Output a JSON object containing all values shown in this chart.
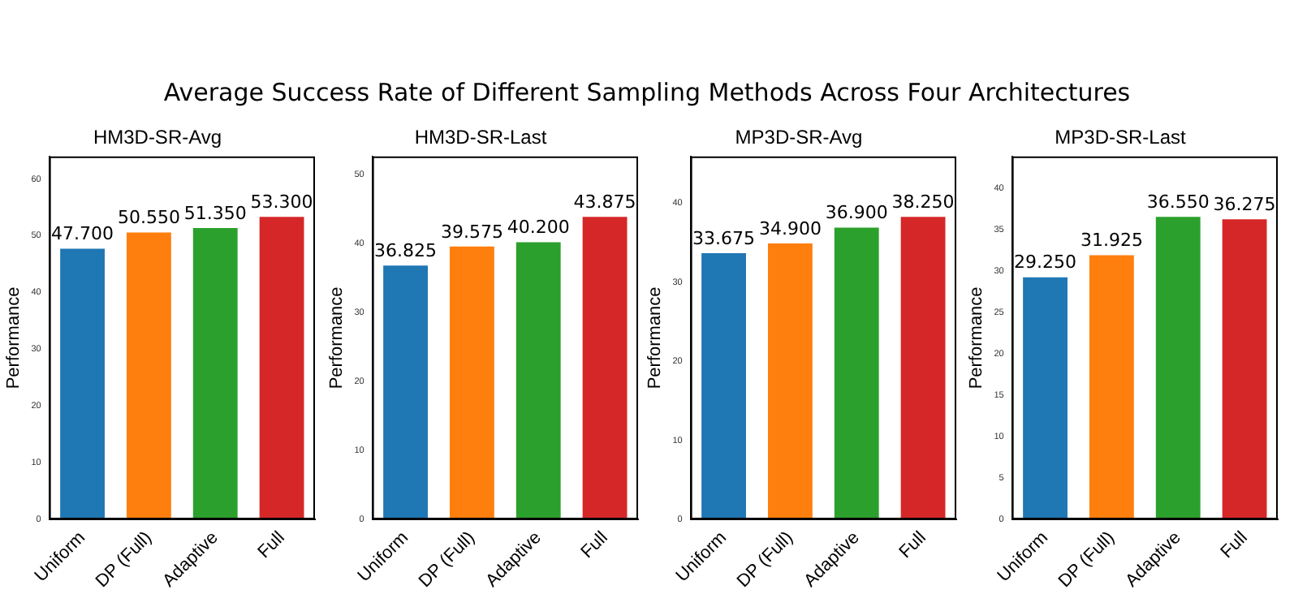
{
  "chart_data": [
    {
      "type": "other",
      "title": "Average Success Rate of Different Sampling Methods Across Four Architectures"
    },
    {
      "type": "bar",
      "title": "HM3D-SR-Avg",
      "ylabel": "Performance",
      "categories": [
        "Uniform",
        "DP (Full)",
        "Adaptive",
        "Full"
      ],
      "values": [
        47.7,
        50.55,
        51.35,
        53.3
      ],
      "colors": [
        "#1f77b4",
        "#ff7f0e",
        "#2ca02c",
        "#d62728"
      ],
      "value_labels": [
        "47.700",
        "50.550",
        "51.350",
        "53.300"
      ],
      "ylim": [
        0,
        63.96
      ],
      "yticks": [
        0,
        10,
        20,
        30,
        40,
        50,
        60
      ],
      "grid": false,
      "legend": false
    },
    {
      "type": "bar",
      "title": "HM3D-SR-Last",
      "ylabel": "Performance",
      "categories": [
        "Uniform",
        "DP (Full)",
        "Adaptive",
        "Full"
      ],
      "values": [
        36.825,
        39.575,
        40.2,
        43.875
      ],
      "colors": [
        "#1f77b4",
        "#ff7f0e",
        "#2ca02c",
        "#d62728"
      ],
      "value_labels": [
        "36.825",
        "39.575",
        "40.200",
        "43.875"
      ],
      "ylim": [
        0,
        52.65
      ],
      "yticks": [
        0,
        10,
        20,
        30,
        40,
        50
      ],
      "grid": false,
      "legend": false
    },
    {
      "type": "bar",
      "title": "MP3D-SR-Avg",
      "ylabel": "Performance",
      "categories": [
        "Uniform",
        "DP (Full)",
        "Adaptive",
        "Full"
      ],
      "values": [
        33.675,
        34.9,
        36.9,
        38.25
      ],
      "colors": [
        "#1f77b4",
        "#ff7f0e",
        "#2ca02c",
        "#d62728"
      ],
      "value_labels": [
        "33.675",
        "34.900",
        "36.900",
        "38.250"
      ],
      "ylim": [
        0,
        45.9
      ],
      "yticks": [
        0,
        10,
        20,
        30,
        40
      ],
      "grid": false,
      "legend": false
    },
    {
      "type": "bar",
      "title": "MP3D-SR-Last",
      "ylabel": "Performance",
      "categories": [
        "Uniform",
        "DP (Full)",
        "Adaptive",
        "Full"
      ],
      "values": [
        29.25,
        31.925,
        36.55,
        36.275
      ],
      "colors": [
        "#1f77b4",
        "#ff7f0e",
        "#2ca02c",
        "#d62728"
      ],
      "value_labels": [
        "29.250",
        "31.925",
        "36.550",
        "36.275"
      ],
      "ylim": [
        0,
        43.86
      ],
      "yticks": [
        0,
        5,
        10,
        15,
        20,
        25,
        30,
        35,
        40
      ],
      "grid": false,
      "legend": false
    }
  ]
}
